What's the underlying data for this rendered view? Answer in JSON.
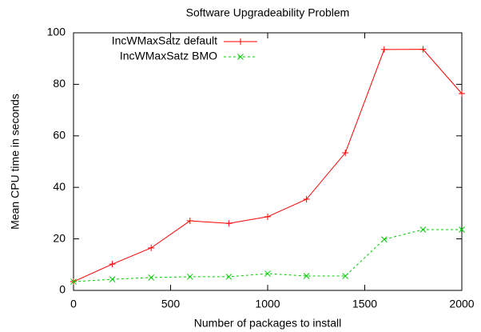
{
  "chart_data": {
    "type": "line",
    "title": "Software Upgradeability Problem",
    "xlabel": "Number of packages to install",
    "ylabel": "Mean CPU time in seconds",
    "x": [
      0,
      200,
      400,
      600,
      800,
      1000,
      1200,
      1400,
      1600,
      1800,
      2000
    ],
    "series": [
      {
        "name": "IncWMaxSatz default",
        "color": "#ff0000",
        "marker": "plus",
        "dash": false,
        "values": [
          3.4,
          10.2,
          16.5,
          27,
          26,
          28.6,
          35.4,
          53.4,
          93.5,
          93.6,
          76.4
        ]
      },
      {
        "name": "IncWMaxSatz BMO",
        "color": "#00cc00",
        "marker": "cross",
        "dash": true,
        "values": [
          3.4,
          4.3,
          5,
          5.3,
          5.3,
          6.5,
          5.6,
          5.6,
          19.8,
          23.6,
          23.6
        ]
      }
    ],
    "xlim": [
      0,
      2000
    ],
    "xticks": [
      0,
      500,
      1000,
      1500,
      2000
    ],
    "ylim": [
      0,
      100
    ],
    "yticks": [
      0,
      20,
      40,
      60,
      80,
      100
    ],
    "legend": "top-left"
  }
}
